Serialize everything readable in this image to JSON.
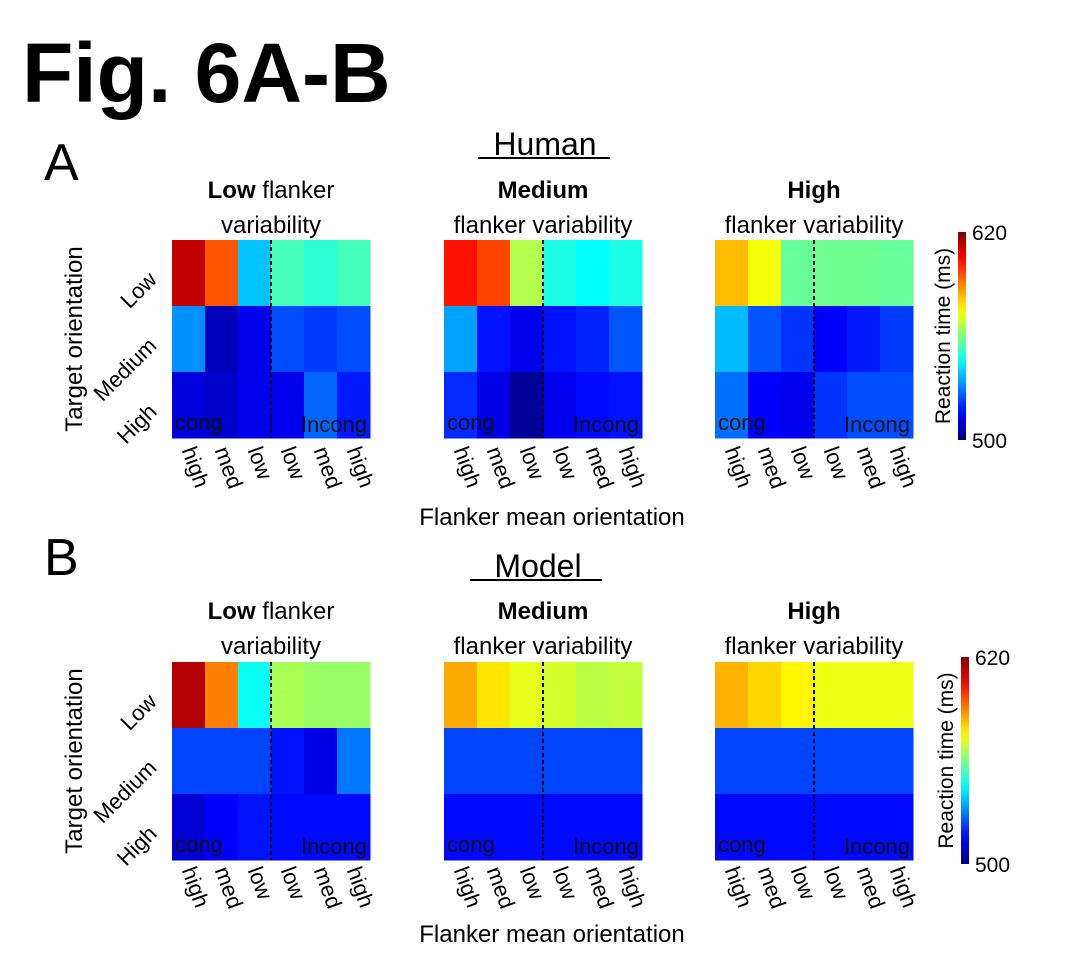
{
  "figure": {
    "title": "Fig. 6A-B",
    "colormap": "jet",
    "colorbar_ticks": [
      "620",
      "500"
    ]
  },
  "chart_data": [
    {
      "type": "heatmap",
      "panel": "A",
      "section_title": "Human",
      "xlabel": "Flanker mean orientation",
      "ylabel": "Target orientation",
      "row_labels": [
        "Low",
        "Medium",
        "High"
      ],
      "col_labels": [
        "high",
        "med",
        "low",
        "low",
        "med",
        "high"
      ],
      "cong_label": "cong",
      "incong_label": "Incong",
      "colorbar": {
        "label": "Reaction time (ms)",
        "min": 500,
        "max": 620
      },
      "subplots": [
        {
          "title_bold": "Low",
          "title_line1_rest": " flanker",
          "title_line2": "variability",
          "values": [
            [
              612,
              595,
              538,
              553,
              550,
              553
            ],
            [
              532,
              507,
              513,
              524,
              522,
              524
            ],
            [
              511,
              509,
              513,
              513,
              527,
              518
            ]
          ]
        },
        {
          "title_bold": "Medium",
          "title_line1_rest": "",
          "title_line2": "flanker variability",
          "values": [
            [
              603,
              597,
              566,
              548,
              545,
              548
            ],
            [
              534,
              517,
              513,
              517,
              519,
              525
            ],
            [
              520,
              512,
              503,
              513,
              516,
              517
            ]
          ]
        },
        {
          "title_bold": "High",
          "title_line1_rest": "",
          "title_line2": "flanker variability",
          "values": [
            [
              583,
              574,
              557,
              558,
              558,
              557
            ],
            [
              537,
              525,
              521,
              515,
              518,
              522
            ],
            [
              528,
              515,
              513,
              521,
              524,
              524
            ]
          ]
        }
      ]
    },
    {
      "type": "heatmap",
      "panel": "B",
      "section_title": "Model",
      "xlabel": "Flanker mean orientation",
      "ylabel": "Target orientation",
      "row_labels": [
        "Low",
        "Medium",
        "High"
      ],
      "col_labels": [
        "high",
        "med",
        "low",
        "low",
        "med",
        "high"
      ],
      "cong_label": "cong",
      "incong_label": "Incong",
      "colorbar": {
        "label": "Reaction time (ms)",
        "min": 500,
        "max": 620
      },
      "subplots": [
        {
          "title_bold": "Low",
          "title_line1_rest": " flanker",
          "title_line2": "variability",
          "values": [
            [
              614,
              590,
              546,
              565,
              563,
              563
            ],
            [
              523,
              523,
              523,
              517,
              512,
              529
            ],
            [
              510,
              515,
              517,
              516,
              516,
              516
            ]
          ]
        },
        {
          "title_bold": "Medium",
          "title_line1_rest": "",
          "title_line2": "flanker variability",
          "values": [
            [
              585,
              578,
              572,
              570,
              567,
              568
            ],
            [
              523,
              523,
              523,
              523,
              523,
              523
            ],
            [
              516,
              516,
              516,
              516,
              516,
              516
            ]
          ]
        },
        {
          "title_bold": "High",
          "title_line1_rest": "",
          "title_line2": "flanker variability",
          "values": [
            [
              584,
              580,
              576,
              573,
              573,
              573
            ],
            [
              523,
              523,
              523,
              523,
              523,
              523
            ],
            [
              516,
              516,
              516,
              516,
              516,
              516
            ]
          ]
        }
      ]
    }
  ]
}
